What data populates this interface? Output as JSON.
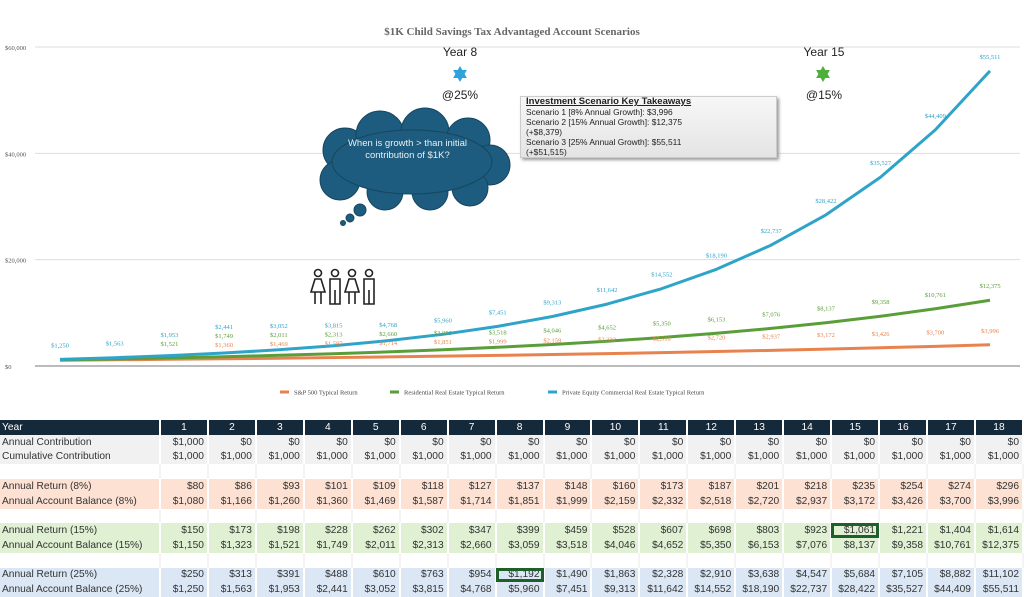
{
  "chart_data": {
    "type": "line",
    "title": "$1K Child Savings Tax Advantaged Account Scenarios",
    "x": [
      1,
      2,
      3,
      4,
      5,
      6,
      7,
      8,
      9,
      10,
      11,
      12,
      13,
      14,
      15,
      16,
      17,
      18
    ],
    "ylim": [
      0,
      60000
    ],
    "yticks": [
      "$0",
      "$20,000",
      "$40,000",
      "$60,000"
    ],
    "ytick_values": [
      0,
      20000,
      40000,
      60000
    ],
    "grid": true,
    "legend_position": "bottom",
    "series": [
      {
        "name": "S&P 500 Typical Return",
        "color": "#e8834f",
        "values": [
          1080,
          1166,
          1260,
          1360,
          1469,
          1587,
          1714,
          1851,
          1999,
          2159,
          2332,
          2518,
          2720,
          2937,
          3172,
          3426,
          3700,
          3996
        ],
        "labels": [
          "",
          "",
          "",
          "$1,360",
          "$1,469",
          "$1,587",
          "$1,714",
          "$1,851",
          "$1,999",
          "$2,159",
          "$2,332",
          "$2,518",
          "$2,720",
          "$2,937",
          "$3,172",
          "$3,426",
          "$3,700",
          "$3,996"
        ]
      },
      {
        "name": "Residential Real Estate Typical Return",
        "color": "#5a9e3a",
        "values": [
          1150,
          1323,
          1521,
          1749,
          2011,
          2313,
          2660,
          3059,
          3518,
          4046,
          4652,
          5350,
          6153,
          7076,
          8137,
          9358,
          10761,
          12375
        ],
        "labels": [
          "",
          "",
          "$1,521",
          "$1,749",
          "$2,011",
          "$2,313",
          "$2,660",
          "$3,059",
          "$3,518",
          "$4,046",
          "$4,652",
          "$5,350",
          "$6,153",
          "$7,076",
          "$8,137",
          "$9,358",
          "$10,761",
          "$12,375"
        ]
      },
      {
        "name": "Private Equity Commercial Real Estate Typical Return",
        "color": "#2fa4c9",
        "values": [
          1250,
          1563,
          1953,
          2441,
          3052,
          3815,
          4768,
          5960,
          7451,
          9313,
          11642,
          14552,
          18190,
          22737,
          28422,
          35527,
          44409,
          55511
        ],
        "labels": [
          "$1,250",
          "$1,563",
          "$1,953",
          "$2,441",
          "$3,052",
          "$3,815",
          "$4,768",
          "$5,960",
          "$7,451",
          "$9,313",
          "$11,642",
          "$14,552",
          "$18,190",
          "$22,737",
          "$28,422",
          "$35,527",
          "$44,409",
          "$55,511"
        ]
      }
    ],
    "annotations": {
      "year8": {
        "label": "Year 8",
        "rate": "@25%",
        "star_color": "#2fa4dc"
      },
      "year15": {
        "label": "Year 15",
        "rate": "@15%",
        "star_color": "#4caf3a"
      },
      "cloud_text": "When is growth > than initial contribution of $1K?",
      "cloud_color": "#1d5c7e",
      "takeaways": {
        "title": "Investment Scenario Key Takeaways",
        "lines": [
          "Scenario 1 [8% Annual Growth]:      $3,996",
          "Scenario 2 [15% Annual Growth]: $12,375",
          "(+$8,379)",
          "Scenario 3 [25% Annual Growth]: $55,511",
          "(+$51,515)"
        ]
      },
      "people_icon": "family-group-icon"
    }
  },
  "table": {
    "header": {
      "label": "Year",
      "values": [
        "1",
        "2",
        "3",
        "4",
        "5",
        "6",
        "7",
        "8",
        "9",
        "10",
        "11",
        "12",
        "13",
        "14",
        "15",
        "16",
        "17",
        "18"
      ]
    },
    "rows": [
      {
        "cls": "contrib",
        "label": "Annual Contribution",
        "values": [
          "$1,000",
          "$0",
          "$0",
          "$0",
          "$0",
          "$0",
          "$0",
          "$0",
          "$0",
          "$0",
          "$0",
          "$0",
          "$0",
          "$0",
          "$0",
          "$0",
          "$0",
          "$0"
        ]
      },
      {
        "cls": "contrib",
        "label": "Cumulative Contribution",
        "values": [
          "$1,000",
          "$1,000",
          "$1,000",
          "$1,000",
          "$1,000",
          "$1,000",
          "$1,000",
          "$1,000",
          "$1,000",
          "$1,000",
          "$1,000",
          "$1,000",
          "$1,000",
          "$1,000",
          "$1,000",
          "$1,000",
          "$1,000",
          "$1,000"
        ]
      },
      {
        "cls": "blank",
        "label": "",
        "values": []
      },
      {
        "cls": "r8",
        "label": "Annual Return (8%)",
        "values": [
          "$80",
          "$86",
          "$93",
          "$101",
          "$109",
          "$118",
          "$127",
          "$137",
          "$148",
          "$160",
          "$173",
          "$187",
          "$201",
          "$218",
          "$235",
          "$254",
          "$274",
          "$296"
        ]
      },
      {
        "cls": "r8",
        "label": "Annual Account Balance (8%)",
        "values": [
          "$1,080",
          "$1,166",
          "$1,260",
          "$1,360",
          "$1,469",
          "$1,587",
          "$1,714",
          "$1,851",
          "$1,999",
          "$2,159",
          "$2,332",
          "$2,518",
          "$2,720",
          "$2,937",
          "$3,172",
          "$3,426",
          "$3,700",
          "$3,996"
        ]
      },
      {
        "cls": "blank",
        "label": "",
        "values": []
      },
      {
        "cls": "r15",
        "label": "Annual Return (15%)",
        "values": [
          "$150",
          "$173",
          "$198",
          "$228",
          "$262",
          "$302",
          "$347",
          "$399",
          "$459",
          "$528",
          "$607",
          "$698",
          "$803",
          "$923",
          "$1,061",
          "$1,221",
          "$1,404",
          "$1,614"
        ],
        "highlight_year": "15"
      },
      {
        "cls": "r15",
        "label": "Annual Account Balance (15%)",
        "values": [
          "$1,150",
          "$1,323",
          "$1,521",
          "$1,749",
          "$2,011",
          "$2,313",
          "$2,660",
          "$3,059",
          "$3,518",
          "$4,046",
          "$4,652",
          "$5,350",
          "$6,153",
          "$7,076",
          "$8,137",
          "$9,358",
          "$10,761",
          "$12,375"
        ]
      },
      {
        "cls": "blank",
        "label": "",
        "values": []
      },
      {
        "cls": "r25",
        "label": "Annual Return (25%)",
        "values": [
          "$250",
          "$313",
          "$391",
          "$488",
          "$610",
          "$763",
          "$954",
          "$1,192",
          "$1,490",
          "$1,863",
          "$2,328",
          "$2,910",
          "$3,638",
          "$4,547",
          "$5,684",
          "$7,105",
          "$8,882",
          "$11,102"
        ],
        "highlight_year": "8"
      },
      {
        "cls": "r25",
        "label": "Annual Account Balance (25%)",
        "values": [
          "$1,250",
          "$1,563",
          "$1,953",
          "$2,441",
          "$3,052",
          "$3,815",
          "$4,768",
          "$5,960",
          "$7,451",
          "$9,313",
          "$11,642",
          "$14,552",
          "$18,190",
          "$22,737",
          "$28,422",
          "$35,527",
          "$44,409",
          "$55,511"
        ]
      }
    ]
  }
}
